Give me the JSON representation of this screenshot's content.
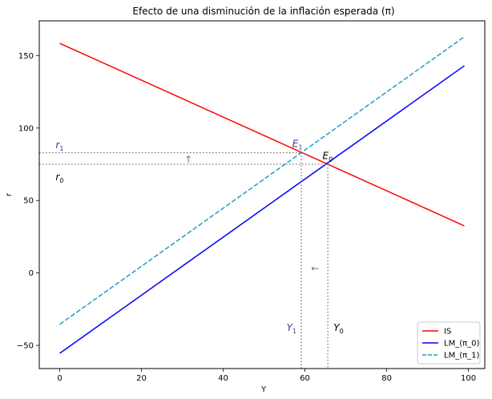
{
  "chart_data": {
    "type": "line",
    "title": "Efecto de una disminución de la inflación esperada (π)",
    "xlabel": "Y",
    "ylabel": "r",
    "xlim": [
      -5,
      104
    ],
    "ylim": [
      -66,
      174
    ],
    "xticks": [
      0,
      20,
      40,
      60,
      80,
      100
    ],
    "yticks": [
      -50,
      0,
      50,
      100,
      150
    ],
    "grid": false,
    "legend_position": "lower-right",
    "series": [
      {
        "name": "IS",
        "color": "#ff0000",
        "style": "solid",
        "x": [
          0,
          99
        ],
        "y": [
          158.5,
          32.5
        ]
      },
      {
        "name": "LM_(π_0)",
        "color": "#0000ff",
        "style": "solid",
        "x": [
          0,
          99
        ],
        "y": [
          -55.5,
          143
        ]
      },
      {
        "name": "LM_(π_1)",
        "color": "#1f9fbf",
        "style": "dashed",
        "x": [
          0,
          99
        ],
        "y": [
          -35.5,
          163
        ]
      }
    ],
    "equilibria": [
      {
        "label": "E",
        "sub": "0",
        "x": 65.6,
        "y": 75,
        "color": "#000000"
      },
      {
        "label": "E",
        "sub": "1",
        "x": 59.1,
        "y": 83,
        "color": "#3a3a8c"
      }
    ],
    "annotations": [
      {
        "label": "r",
        "sub": "0",
        "x": -1,
        "y": 64,
        "color": "#000000"
      },
      {
        "label": "r",
        "sub": "1",
        "x": -1,
        "y": 86,
        "color": "#3a3a8c"
      },
      {
        "label": "Y",
        "sub": "0",
        "x": 67,
        "y": -40,
        "color": "#000000"
      },
      {
        "label": "Y",
        "sub": "1",
        "x": 55.5,
        "y": -40,
        "color": "#3a3a8c"
      },
      {
        "label": "↑",
        "sub": "",
        "x": 30.5,
        "y": 76,
        "color": "#777777"
      },
      {
        "label": "←",
        "sub": "",
        "x": 61.5,
        "y": 1,
        "color": "#777777"
      }
    ]
  }
}
